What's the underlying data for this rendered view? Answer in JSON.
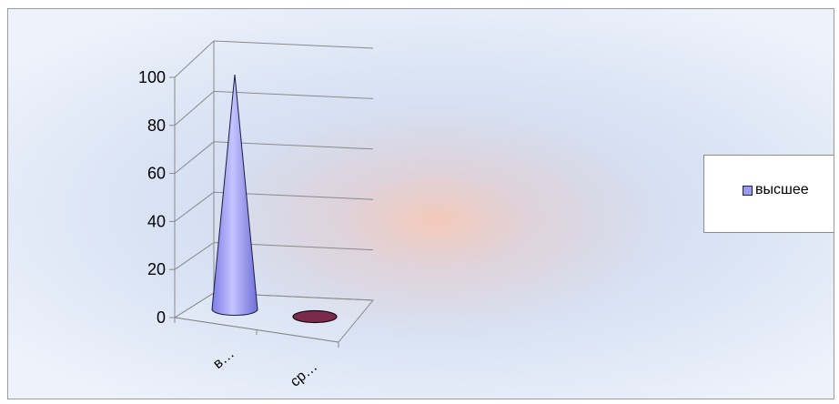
{
  "chart_data": {
    "type": "bar",
    "shape": "cone",
    "categories": [
      "в…",
      "ср…"
    ],
    "series": [
      {
        "name": "высшее",
        "values": [
          100,
          0
        ],
        "colors": [
          "#9b9bf3",
          "#7a2a4a"
        ]
      }
    ],
    "yticks": [
      "0",
      "20",
      "40",
      "60",
      "80",
      "100"
    ],
    "ylim": [
      0,
      100
    ],
    "grid": true,
    "legend_placement": "right"
  }
}
